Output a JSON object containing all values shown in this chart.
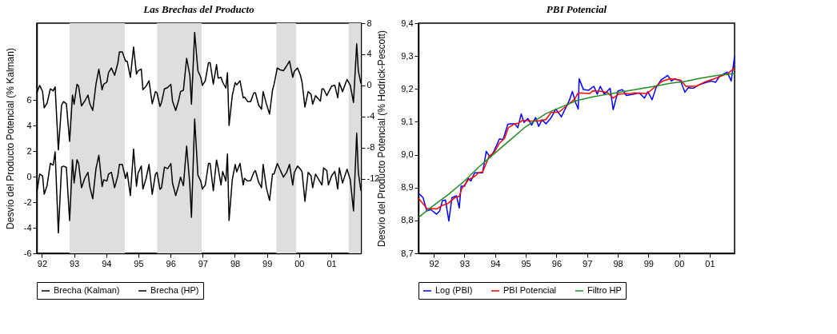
{
  "chart_data": [
    {
      "type": "line",
      "title": "Las Brechas del Producto",
      "ylabel": "Desvío del Producto Potencial (% Kalman)",
      "y2label": "Desvío del Producto Potencial (% Hodrick-Pescott)",
      "x": [
        1991.84,
        1991.93,
        1992.02,
        1992.07,
        1992.16,
        1992.26,
        1992.35,
        1992.41,
        1992.51,
        1992.61,
        1992.67,
        1992.76,
        1992.86,
        1992.95,
        1993.0,
        1993.09,
        1993.14,
        1993.23,
        1993.33,
        1993.43,
        1993.49,
        1993.58,
        1993.68,
        1993.77,
        1993.87,
        1993.92,
        1994.02,
        1994.07,
        1994.16,
        1994.26,
        1994.36,
        1994.41,
        1994.5,
        1994.6,
        1994.65,
        1994.75,
        1994.85,
        1994.94,
        1994.99,
        1995.09,
        1995.14,
        1995.24,
        1995.33,
        1995.43,
        1995.53,
        1995.58,
        1995.67,
        1995.72,
        1995.81,
        1995.91,
        1996.01,
        1996.06,
        1996.16,
        1996.25,
        1996.31,
        1996.4,
        1996.5,
        1996.6,
        1996.65,
        1996.75,
        1996.85,
        1996.94,
        1996.99,
        1997.08,
        1997.18,
        1997.23,
        1997.33,
        1997.43,
        1997.48,
        1997.57,
        1997.62,
        1997.72,
        1997.77,
        1997.82,
        1997.92,
        1998.01,
        1998.06,
        1998.16,
        1998.26,
        1998.3,
        1998.4,
        1998.49,
        1998.59,
        1998.64,
        1998.74,
        1998.83,
        1998.88,
        1998.98,
        1999.08,
        1999.17,
        1999.22,
        1999.32,
        1999.42,
        1999.51,
        1999.61,
        1999.7,
        1999.8,
        1999.85,
        1999.95,
        2000.04,
        2000.09,
        2000.18,
        2000.28,
        2000.37,
        2000.42,
        2000.51,
        2000.66,
        2000.71,
        2000.76,
        2000.86,
        2000.91,
        2001.01,
        2001.11,
        2001.2,
        2001.25,
        2001.35,
        2001.49,
        2001.59,
        2001.69,
        2001.79,
        2001.84,
        2001.92
      ],
      "series": [
        {
          "name": "Brecha (Kalman)",
          "color": "#000000",
          "values": [
            -1.24,
            0.2,
            0.06,
            -1.38,
            -0.7,
            1.03,
            0.9,
            1.94,
            -4.4,
            0.74,
            0.82,
            0.72,
            -3.44,
            1.32,
            -0.5,
            1.32,
            1.03,
            -0.87,
            -0.14,
            0.33,
            -0.82,
            -1.73,
            0.62,
            1.67,
            -0.78,
            -0.25,
            -0.35,
            0.2,
            0.33,
            -0.87,
            0.06,
            0.95,
            0.95,
            -0.14,
            0.33,
            -1.48,
            2.16,
            -0.76,
            0.27,
            0.82,
            -0.97,
            -0.14,
            0.95,
            -1.38,
            0.2,
            0.33,
            -0.99,
            -0.87,
            0.74,
            0.62,
            1.03,
            -0.5,
            -1.48,
            -0.7,
            -0.04,
            -0.7,
            2.39,
            -0.66,
            -3.18,
            4.5,
            0.12,
            -0.35,
            -0.97,
            -0.66,
            1.03,
            1.03,
            -1.11,
            1.3,
            0.68,
            -0.66,
            0.41,
            -0.35,
            1.77,
            -3.44,
            -0.25,
            0.95,
            0.37,
            1.03,
            -0.66,
            -0.14,
            -0.35,
            -0.31,
            0.33,
            0.47,
            -0.45,
            -0.87,
            0.95,
            -0.87,
            -1.86,
            0.2,
            0.2,
            1.03,
            0.47,
            -0.04,
            0.33,
            0.95,
            -0.66,
            0.33,
            0.82,
            0.58,
            0.37,
            -1.94,
            0.33,
            0.06,
            -0.87,
            0.2,
            -0.45,
            -0.66,
            0.68,
            0.47,
            -0.66,
            0.06,
            0.41,
            -0.97,
            0.68,
            -0.5,
            0.58,
            -0.25,
            -2.68,
            3.4,
            0.33,
            -1.11
          ]
        },
        {
          "name": "Brecha (HP)",
          "color": "#000000",
          "axis": "y2",
          "values": [
            -0.97,
            0,
            -0.8,
            -2.89,
            -2.3,
            -0.45,
            -0.7,
            -0.21,
            -8.3,
            -2.54,
            -2.09,
            -2.37,
            -7.2,
            -1.25,
            -2.43,
            0.14,
            -0.1,
            -2.64,
            -2.02,
            -1.25,
            -2.37,
            -3.23,
            0.14,
            2.09,
            -0.56,
            0.14,
            0.42,
            1.63,
            2.23,
            1.29,
            2.85,
            4.31,
            4.31,
            3.13,
            3.13,
            1.04,
            4.94,
            1.46,
            1.88,
            2.09,
            -0.56,
            -0.1,
            0.59,
            -2.37,
            -0.8,
            -0.97,
            -2.71,
            -2.19,
            -0.45,
            -0.28,
            0.14,
            -2.02,
            -3.23,
            -1.95,
            -0.8,
            -0.63,
            3.48,
            1.29,
            -2.43,
            6.82,
            1.88,
            1.04,
            0,
            0.59,
            2.92,
            2.92,
            0.14,
            2.68,
            0.94,
            1.04,
            0.42,
            -0.35,
            1.63,
            -5.15,
            -1.32,
            0.35,
            0.07,
            0.59,
            -1.6,
            -1.5,
            -2.09,
            -2.09,
            -0.97,
            -0.97,
            -2.54,
            -3.06,
            -0.8,
            -2.37,
            -3.69,
            -0.63,
            0.14,
            2.23,
            1.98,
            1.88,
            2.5,
            3.13,
            1.04,
            1.81,
            2.23,
            1.29,
            0.42,
            -2.78,
            -0.8,
            -1.15,
            -2.43,
            -1.32,
            -2.02,
            -0.45,
            -0.45,
            -1.32,
            -0.9,
            -0.1,
            0,
            -1.6,
            0.35,
            -0.8,
            0.77,
            0,
            -2.19,
            5.36,
            1.88,
            0.24
          ]
        }
      ],
      "xlim": [
        1991.84,
        2001.92
      ],
      "xticks": [
        {
          "value": 1992,
          "label": "92"
        },
        {
          "value": 1993,
          "label": "93"
        },
        {
          "value": 1994,
          "label": "94"
        },
        {
          "value": 1995,
          "label": "95"
        },
        {
          "value": 1996,
          "label": "96"
        },
        {
          "value": 1997,
          "label": "97"
        },
        {
          "value": 1998,
          "label": "98"
        },
        {
          "value": 1999,
          "label": "99"
        },
        {
          "value": 2000,
          "label": "00"
        },
        {
          "value": 2001,
          "label": "01"
        }
      ],
      "ylim": [
        -6,
        12
      ],
      "yticks": [
        -6,
        -4,
        -2,
        0,
        2,
        4,
        6
      ],
      "y2lim": [
        -21.6,
        8
      ],
      "y2ticks": [
        -12,
        -8,
        -4,
        0,
        4,
        8
      ],
      "bands": [
        {
          "axis": "x",
          "from": 1992.86,
          "to": 1994.58,
          "color": "#dedede"
        },
        {
          "axis": "x",
          "from": 1995.58,
          "to": 1996.97,
          "color": "#dedede"
        },
        {
          "axis": "x",
          "from": 1999.29,
          "to": 1999.9,
          "color": "#dedede"
        },
        {
          "axis": "x",
          "from": 2001.54,
          "to": 2001.92,
          "color": "#dedede"
        }
      ],
      "legend": "bottom",
      "grid": false
    },
    {
      "type": "line",
      "title": "PBI Potencial",
      "series": [
        {
          "name": "Log (PBI)",
          "color": "#0000ff",
          "x": [
            1991.5,
            1991.65,
            1991.77,
            1991.9,
            1992.09,
            1992.19,
            1992.28,
            1992.38,
            1992.49,
            1992.59,
            1992.74,
            1992.83,
            1992.89,
            1993.0,
            1993.12,
            1993.21,
            1993.33,
            1993.46,
            1993.59,
            1993.71,
            1993.84,
            1993.97,
            1994.14,
            1994.26,
            1994.41,
            1994.47,
            1994.64,
            1994.74,
            1994.85,
            1994.94,
            1995.07,
            1995.19,
            1995.32,
            1995.42,
            1995.53,
            1995.66,
            1995.83,
            1995.98,
            1996.16,
            1996.42,
            1996.52,
            1996.63,
            1996.71,
            1996.74,
            1996.88,
            1997.05,
            1997.22,
            1997.33,
            1997.43,
            1997.56,
            1997.75,
            1997.85,
            1998.01,
            1998.15,
            1998.28,
            1998.53,
            1998.7,
            1998.87,
            1998.98,
            1999.12,
            1999.25,
            1999.42,
            1999.63,
            1999.75,
            1999.86,
            2000.05,
            2000.19,
            2000.3,
            2000.47,
            2000.64,
            2000.89,
            2001.06,
            2001.19,
            2001.32,
            2001.57,
            2001.7,
            2001.81
          ],
          "values": [
            8.883,
            8.869,
            8.829,
            8.833,
            8.819,
            8.829,
            8.86,
            8.862,
            8.798,
            8.869,
            8.875,
            8.838,
            8.904,
            8.904,
            8.928,
            8.92,
            8.945,
            8.945,
            8.945,
            9.01,
            8.992,
            9.012,
            9.048,
            9.046,
            9.092,
            9.094,
            9.094,
            9.082,
            9.124,
            9.098,
            9.11,
            9.09,
            9.113,
            9.086,
            9.106,
            9.094,
            9.113,
            9.139,
            9.115,
            9.165,
            9.192,
            9.157,
            9.139,
            9.231,
            9.198,
            9.196,
            9.208,
            9.184,
            9.208,
            9.184,
            9.202,
            9.137,
            9.194,
            9.198,
            9.18,
            9.184,
            9.188,
            9.172,
            9.192,
            9.167,
            9.204,
            9.228,
            9.241,
            9.224,
            9.231,
            9.224,
            9.19,
            9.204,
            9.202,
            9.212,
            9.22,
            9.224,
            9.22,
            9.239,
            9.251,
            9.224,
            9.299
          ]
        },
        {
          "name": "PBI Potencial",
          "color": "#ff0000",
          "x": [
            1991.5,
            1991.77,
            1992.11,
            1992.28,
            1992.45,
            1992.7,
            1992.83,
            1992.91,
            1993.12,
            1993.33,
            1993.46,
            1993.59,
            1993.8,
            1993.97,
            1994.14,
            1994.31,
            1994.43,
            1994.64,
            1994.77,
            1994.9,
            1995.15,
            1995.4,
            1995.66,
            1995.83,
            1996.08,
            1996.33,
            1996.59,
            1996.71,
            1997.09,
            1997.18,
            1997.52,
            1997.68,
            1997.85,
            1998.02,
            1998.44,
            1998.53,
            1998.95,
            1999.16,
            1999.46,
            1999.71,
            2000.05,
            2000.22,
            2000.56,
            2000.81,
            2001.15,
            2001.57,
            2001.81
          ],
          "values": [
            8.867,
            8.837,
            8.835,
            8.846,
            8.851,
            8.87,
            8.873,
            8.896,
            8.923,
            8.934,
            8.945,
            8.947,
            8.995,
            9.007,
            9.035,
            9.05,
            9.082,
            9.094,
            9.096,
            9.105,
            9.102,
            9.102,
            9.107,
            9.129,
            9.129,
            9.149,
            9.168,
            9.188,
            9.186,
            9.194,
            9.192,
            9.188,
            9.172,
            9.184,
            9.186,
            9.188,
            9.186,
            9.202,
            9.224,
            9.231,
            9.227,
            9.208,
            9.208,
            9.22,
            9.231,
            9.246,
            9.263
          ]
        },
        {
          "name": "Filtro HP",
          "color": "#228b22",
          "x": [
            1991.5,
            1992.0,
            1992.45,
            1993.0,
            1993.46,
            1993.97,
            1994.47,
            1994.98,
            1995.66,
            1996.16,
            1996.67,
            1997.18,
            1997.68,
            1998.19,
            1998.7,
            1999.2,
            1999.71,
            2000.22,
            2000.72,
            2001.23,
            2001.81
          ],
          "values": [
            8.809,
            8.846,
            8.877,
            8.92,
            8.962,
            9.003,
            9.043,
            9.084,
            9.125,
            9.145,
            9.165,
            9.176,
            9.184,
            9.192,
            9.2,
            9.208,
            9.217,
            9.223,
            9.233,
            9.241,
            9.247
          ]
        }
      ],
      "xlim": [
        1991.5,
        2001.81
      ],
      "xticks": [
        {
          "value": 1992,
          "label": "92"
        },
        {
          "value": 1993,
          "label": "93"
        },
        {
          "value": 1994,
          "label": "94"
        },
        {
          "value": 1995,
          "label": "95"
        },
        {
          "value": 1996,
          "label": "96"
        },
        {
          "value": 1997,
          "label": "97"
        },
        {
          "value": 1998,
          "label": "98"
        },
        {
          "value": 1999,
          "label": "99"
        },
        {
          "value": 2000,
          "label": "00"
        },
        {
          "value": 2001,
          "label": "01"
        }
      ],
      "ylim": [
        8.7,
        9.4
      ],
      "yticks": [
        {
          "value": 8.7,
          "label": "8,7"
        },
        {
          "value": 8.8,
          "label": "8,8"
        },
        {
          "value": 8.9,
          "label": "8,9"
        },
        {
          "value": 9.0,
          "label": "9,0"
        },
        {
          "value": 9.1,
          "label": "9,1"
        },
        {
          "value": 9.2,
          "label": "9,2"
        },
        {
          "value": 9.3,
          "label": "9,3"
        },
        {
          "value": 9.4,
          "label": "9,4"
        }
      ],
      "legend": "bottom",
      "grid": false
    }
  ]
}
